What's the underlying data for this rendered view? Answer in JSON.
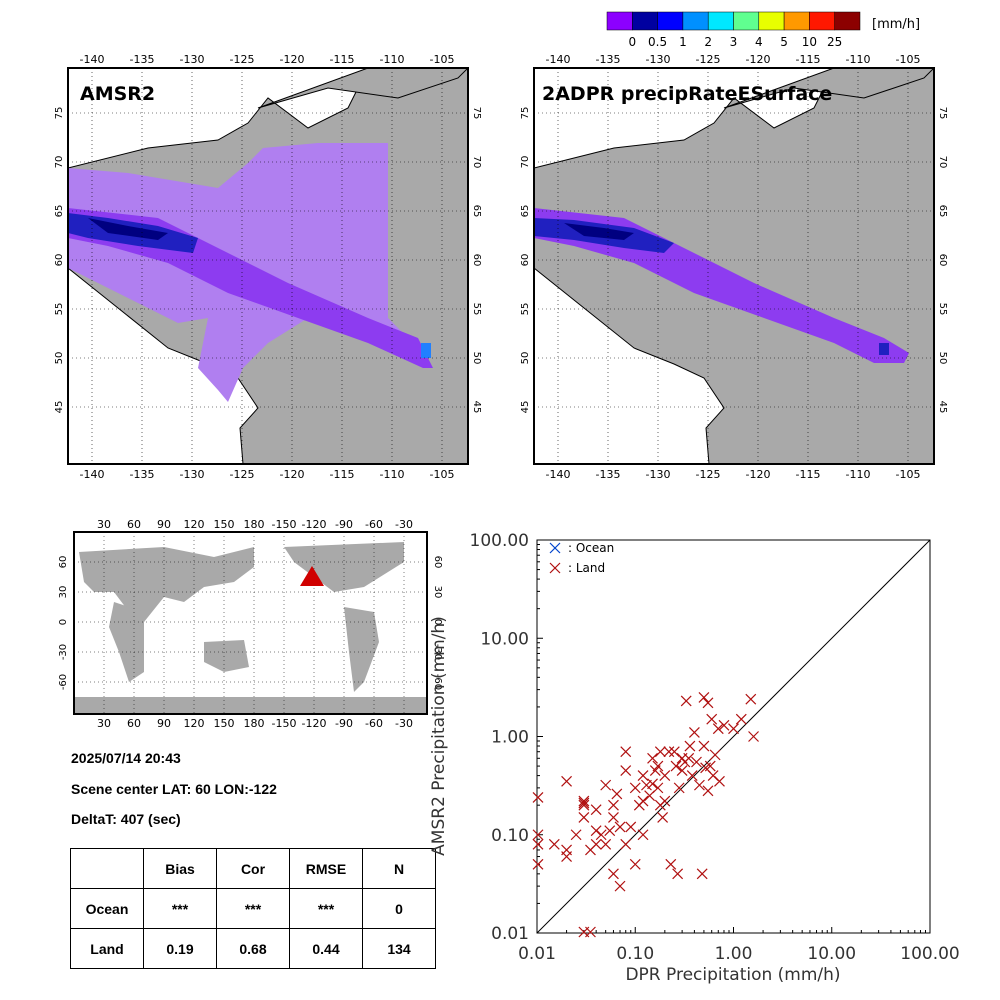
{
  "colorbar": {
    "unit": "[mm/h]",
    "labels": [
      "0",
      "0.5",
      "1",
      "2",
      "3",
      "4",
      "5",
      "10",
      "25"
    ],
    "colors": [
      "#8c00ff",
      "#0000a0",
      "#0000ff",
      "#0090ff",
      "#00e8ff",
      "#60ff90",
      "#e8ff00",
      "#ff9900",
      "#ff1800",
      "#8c0000"
    ]
  },
  "panels": {
    "left_title": "AMSR2",
    "right_title": "2ADPR precipRateESurface",
    "lon_ticks": [
      "-140",
      "-135",
      "-130",
      "-125",
      "-120",
      "-115",
      "-110",
      "-105"
    ],
    "lat_ticks": [
      "75",
      "70",
      "65",
      "60",
      "55",
      "50",
      "45"
    ]
  },
  "world_map": {
    "lon_ticks": [
      "30",
      "60",
      "90",
      "120",
      "150",
      "180",
      "-150",
      "-120",
      "-90",
      "-60",
      "-30"
    ],
    "lat_ticks": [
      "60",
      "30",
      "0",
      "-30",
      "-60"
    ],
    "marker_color": "#d00000"
  },
  "info": {
    "datetime": "2025/07/14 20:43",
    "scene_center": "Scene center LAT: 60   LON:-122",
    "delta_t": "DeltaT:  407 (sec)"
  },
  "stats_table": {
    "headers": [
      "",
      "Bias",
      "Cor",
      "RMSE",
      "N"
    ],
    "rows": [
      [
        "Ocean",
        "***",
        "***",
        "***",
        "0"
      ],
      [
        "Land",
        "0.19",
        "0.68",
        "0.44",
        "134"
      ]
    ]
  },
  "chart_data": {
    "type": "scatter",
    "xlabel": "DPR Precipitation (mm/h)",
    "ylabel": "AMSR2 Precipitation (mm/h)",
    "x_scale": "log",
    "y_scale": "log",
    "xlim": [
      0.01,
      100
    ],
    "ylim": [
      0.01,
      100
    ],
    "tick_labels": [
      "0.01",
      "0.10",
      "1.00",
      "10.00",
      "100.00"
    ],
    "grid": false,
    "one_to_one_line": true,
    "legend_placement": "top-left",
    "series": [
      {
        "name": ": Ocean",
        "color": "#0044cc",
        "x": [],
        "y": []
      },
      {
        "name": ": Land",
        "color": "#b01010",
        "x": [
          0.01,
          0.01,
          0.01,
          0.01,
          0.02,
          0.02,
          0.02,
          0.03,
          0.03,
          0.03,
          0.03,
          0.03,
          0.035,
          0.04,
          0.04,
          0.04,
          0.045,
          0.05,
          0.05,
          0.055,
          0.06,
          0.06,
          0.065,
          0.07,
          0.07,
          0.08,
          0.08,
          0.09,
          0.1,
          0.1,
          0.11,
          0.12,
          0.12,
          0.13,
          0.14,
          0.15,
          0.15,
          0.16,
          0.17,
          0.17,
          0.18,
          0.18,
          0.19,
          0.2,
          0.2,
          0.22,
          0.23,
          0.25,
          0.26,
          0.27,
          0.28,
          0.3,
          0.32,
          0.33,
          0.35,
          0.36,
          0.38,
          0.4,
          0.42,
          0.45,
          0.48,
          0.5,
          0.5,
          0.52,
          0.55,
          0.58,
          0.6,
          0.62,
          0.65,
          0.7,
          0.72,
          0.8,
          1.0,
          1.2,
          1.5,
          1.6,
          0.3,
          0.55,
          0.08,
          0.12,
          0.025,
          0.035,
          0.06,
          0.015
        ],
        "y": [
          0.24,
          0.1,
          0.08,
          0.05,
          0.35,
          0.06,
          0.07,
          0.22,
          0.21,
          0.15,
          0.2,
          0.01,
          0.01,
          0.08,
          0.11,
          0.18,
          0.1,
          0.08,
          0.32,
          0.11,
          0.2,
          0.04,
          0.26,
          0.12,
          0.03,
          0.45,
          0.7,
          0.12,
          0.3,
          0.05,
          0.2,
          0.4,
          0.1,
          0.32,
          0.25,
          0.6,
          0.33,
          0.45,
          0.3,
          0.5,
          0.2,
          0.7,
          0.15,
          0.22,
          0.4,
          0.7,
          0.05,
          0.7,
          0.5,
          0.04,
          0.3,
          0.6,
          0.55,
          2.3,
          0.6,
          0.8,
          0.4,
          1.1,
          0.55,
          0.32,
          0.04,
          2.5,
          0.8,
          0.48,
          2.2,
          0.5,
          1.5,
          0.4,
          0.65,
          1.2,
          0.35,
          1.3,
          1.2,
          1.5,
          2.4,
          1.0,
          0.45,
          0.28,
          0.08,
          0.22,
          0.1,
          0.07,
          0.15,
          0.08
        ]
      }
    ]
  }
}
